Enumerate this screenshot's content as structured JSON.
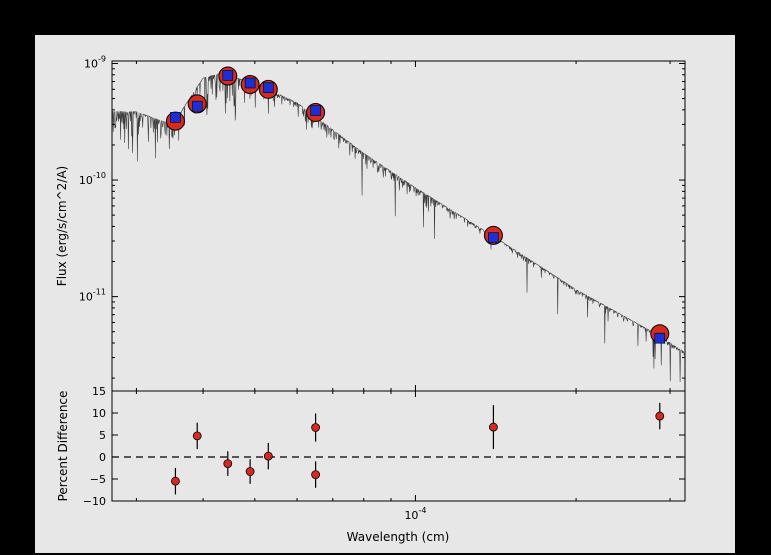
{
  "chart_data": [
    {
      "type": "scatter",
      "title": "",
      "xscale": "log",
      "yscale": "log",
      "ylabel": "Flux (erg/s/cm^2/A)",
      "y_tick_labels": [
        {
          "value": 1e-09,
          "base": "10",
          "exp": "-9"
        },
        {
          "value": 1e-10,
          "base": "10",
          "exp": "-10"
        },
        {
          "value": 1e-11,
          "base": "10",
          "exp": "-11"
        }
      ],
      "xlim": [
        2.7e-05,
        0.00032
      ],
      "ylim": [
        1.55e-12,
        1.05e-09
      ],
      "series": [
        {
          "kind": "observed",
          "marker": "red circle",
          "color": "#d62a1e",
          "x": [
            3.55e-05,
            3.9e-05,
            4.45e-05,
            4.9e-05,
            5.3e-05,
            6.5e-05,
            0.00014,
            0.000287
          ],
          "y": [
            3.2e-10,
            4.5e-10,
            7.8e-10,
            6.6e-10,
            6e-10,
            3.8e-10,
            3.35e-11,
            4.8e-12
          ]
        },
        {
          "kind": "model",
          "marker": "blue square",
          "color": "#1b2fd6",
          "x": [
            3.55e-05,
            3.9e-05,
            4.45e-05,
            4.9e-05,
            5.3e-05,
            6.5e-05,
            0.00014,
            0.000287
          ],
          "y": [
            3.45e-10,
            4.3e-10,
            7.9e-10,
            6.8e-10,
            6.2e-10,
            3.95e-10,
            3.2e-11,
            4.4e-12
          ]
        }
      ],
      "spectrum_color": "#3a3a3a"
    },
    {
      "type": "scatter",
      "xscale": "log",
      "xlabel": "Wavelength (cm)",
      "ylabel": "Percent Difference",
      "x_tick_labels": [
        {
          "value": 0.0001,
          "base": "10",
          "exp": "-4"
        }
      ],
      "y_ticks": [
        -10,
        -5,
        0,
        5,
        10,
        15
      ],
      "y_tick_labels": [
        "−10",
        "−5",
        "0",
        "5",
        "10",
        "15"
      ],
      "xlim": [
        2.7e-05,
        0.00032
      ],
      "ylim": [
        -10,
        15
      ],
      "reference_line": 0,
      "series": [
        {
          "marker": "red circle with error bars",
          "color": "#d62a1e",
          "x": [
            3.55e-05,
            3.9e-05,
            4.45e-05,
            4.9e-05,
            5.3e-05,
            6.5e-05,
            6.5e-05,
            0.00014,
            0.000287
          ],
          "y": [
            -5.5,
            4.8,
            -1.5,
            -3.3,
            0.2,
            6.7,
            -4.0,
            6.8,
            9.3
          ],
          "error": [
            3.0,
            3.0,
            2.8,
            2.8,
            3.0,
            3.2,
            3.0,
            5.0,
            3.0
          ]
        }
      ]
    }
  ]
}
